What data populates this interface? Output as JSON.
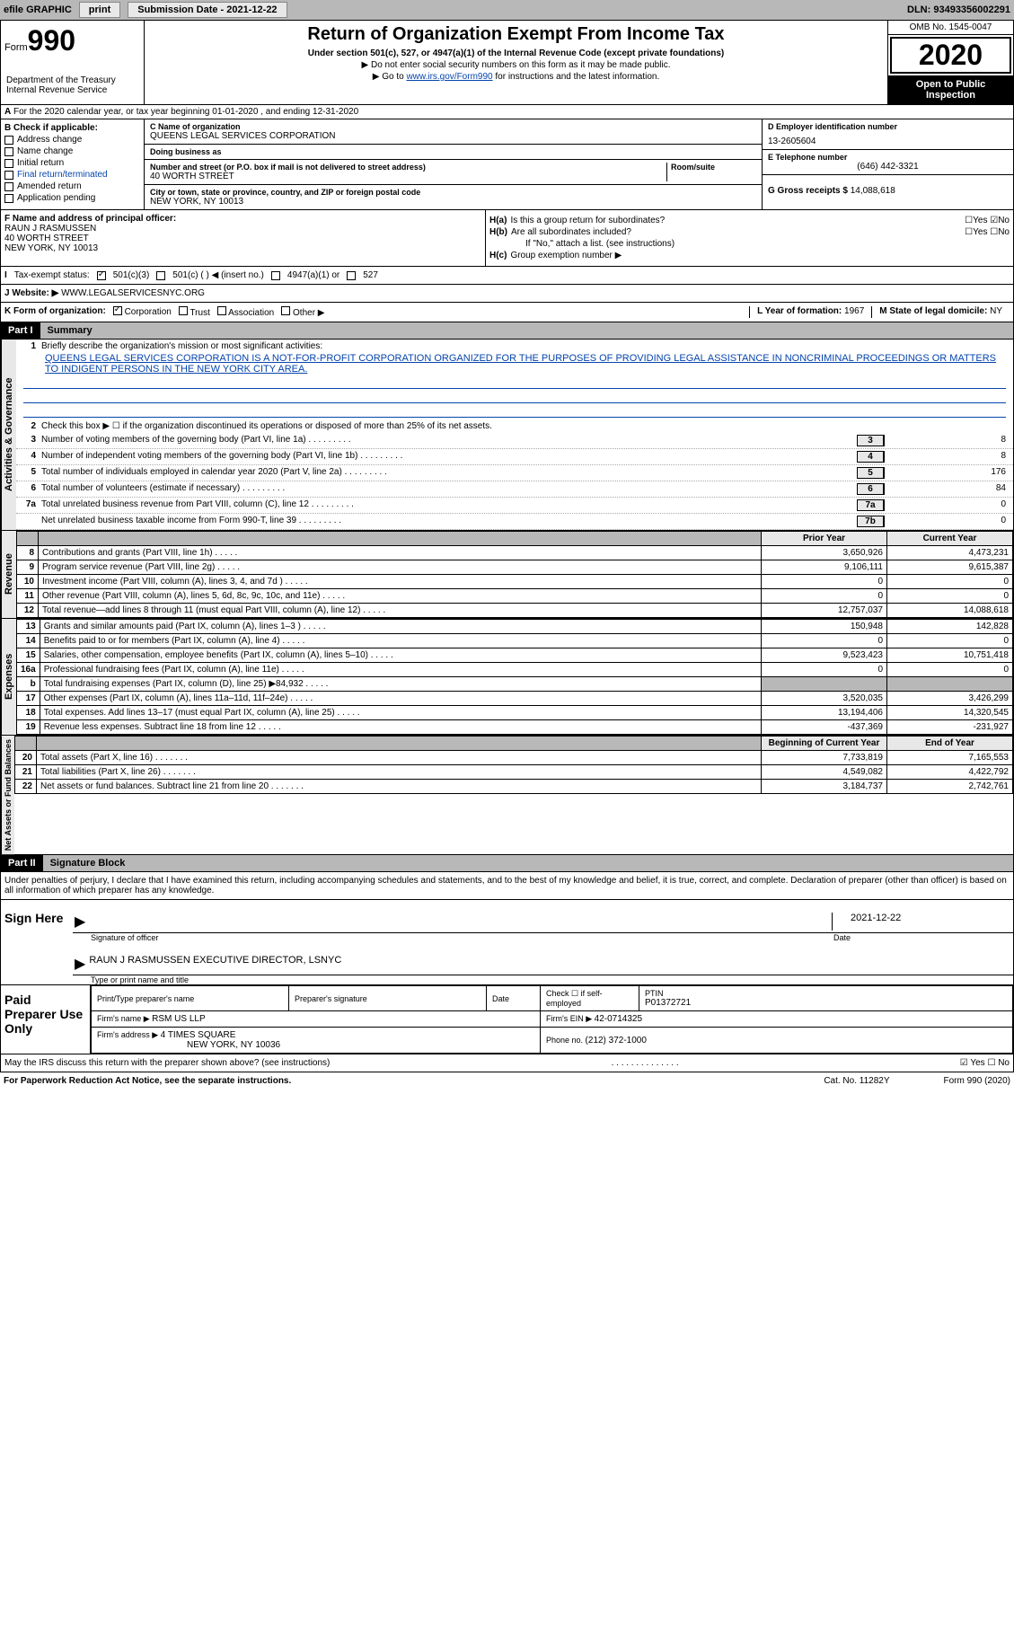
{
  "topbar": {
    "efile": "efile GRAPHIC",
    "print": "print",
    "sub_date_label": "Submission Date - ",
    "sub_date": "2021-12-22",
    "dln_label": "DLN: ",
    "dln": "93493356002291"
  },
  "header": {
    "form_word": "Form",
    "form_num": "990",
    "dept": "Department of the Treasury\nInternal Revenue Service",
    "title": "Return of Organization Exempt From Income Tax",
    "subtitle": "Under section 501(c), 527, or 4947(a)(1) of the Internal Revenue Code (except private foundations)",
    "note1": "▶ Do not enter social security numbers on this form as it may be made public.",
    "note2_pre": "▶ Go to ",
    "note2_link": "www.irs.gov/Form990",
    "note2_post": " for instructions and the latest information.",
    "omb": "OMB No. 1545-0047",
    "year": "2020",
    "open": "Open to Public Inspection"
  },
  "row_a": "For the 2020 calendar year, or tax year beginning 01-01-2020   , and ending 12-31-2020",
  "b": {
    "label": "B Check if applicable:",
    "items": [
      "Address change",
      "Name change",
      "Initial return",
      "Final return/terminated",
      "Amended return",
      "Application pending"
    ],
    "amended_color": "#0645ad"
  },
  "c": {
    "name_label": "C Name of organization",
    "name": "QUEENS LEGAL SERVICES CORPORATION",
    "dba_label": "Doing business as",
    "dba": "",
    "street_label": "Number and street (or P.O. box if mail is not delivered to street address)",
    "room_label": "Room/suite",
    "street": "40 WORTH STREET",
    "city_label": "City or town, state or province, country, and ZIP or foreign postal code",
    "city": "NEW YORK, NY  10013"
  },
  "d": {
    "ein_label": "D Employer identification number",
    "ein": "13-2605604",
    "tel_label": "E Telephone number",
    "tel": "(646) 442-3321",
    "gross_label": "G Gross receipts $ ",
    "gross": "14,088,618"
  },
  "f": {
    "label": "F  Name and address of principal officer:",
    "name": "RAUN J RASMUSSEN",
    "street": "40 WORTH STREET",
    "city": "NEW YORK, NY  10013"
  },
  "h": {
    "ha_label": "H(a)",
    "ha_text": "Is this a group return for subordinates?",
    "hb_label": "H(b)",
    "hb_text": "Are all subordinates included?",
    "hb_note": "If \"No,\" attach a list. (see instructions)",
    "hc_label": "H(c)",
    "hc_text": "Group exemption number ▶",
    "yes": "Yes",
    "no": "No"
  },
  "i": {
    "label": "I",
    "text": "Tax-exempt status:",
    "opts": [
      "501(c)(3)",
      "501(c) (  ) ◀ (insert no.)",
      "4947(a)(1) or",
      "527"
    ]
  },
  "j": {
    "label": "J",
    "text": "Website: ▶",
    "url": "WWW.LEGALSERVICESNYC.ORG"
  },
  "k": {
    "label": "K Form of organization:",
    "opts": [
      "Corporation",
      "Trust",
      "Association",
      "Other ▶"
    ],
    "l_label": "L Year of formation: ",
    "l_val": "1967",
    "m_label": "M State of legal domicile: ",
    "m_val": "NY"
  },
  "part1": {
    "header": "Part I",
    "title": "Summary",
    "line1_label": "1",
    "line1_text": "Briefly describe the organization's mission or most significant activities:",
    "mission": "QUEENS LEGAL SERVICES CORPORATION IS A NOT-FOR-PROFIT CORPORATION ORGANIZED FOR THE PURPOSES OF PROVIDING LEGAL ASSISTANCE IN NONCRIMINAL PROCEEDINGS OR MATTERS TO INDIGENT PERSONS IN THE NEW YORK CITY AREA.",
    "gov_label": "Activities & Governance",
    "rev_label": "Revenue",
    "exp_label": "Expenses",
    "net_label": "Net Assets or Fund Balances",
    "line2": "Check this box ▶ ☐  if the organization discontinued its operations or disposed of more than 25% of its net assets.",
    "lines_gov": [
      {
        "n": "3",
        "t": "Number of voting members of the governing body (Part VI, line 1a)",
        "b": "3",
        "v": "8"
      },
      {
        "n": "4",
        "t": "Number of independent voting members of the governing body (Part VI, line 1b)",
        "b": "4",
        "v": "8"
      },
      {
        "n": "5",
        "t": "Total number of individuals employed in calendar year 2020 (Part V, line 2a)",
        "b": "5",
        "v": "176"
      },
      {
        "n": "6",
        "t": "Total number of volunteers (estimate if necessary)",
        "b": "6",
        "v": "84"
      },
      {
        "n": "7a",
        "t": "Total unrelated business revenue from Part VIII, column (C), line 12",
        "b": "7a",
        "v": "0"
      },
      {
        "n": "",
        "t": "Net unrelated business taxable income from Form 990-T, line 39",
        "b": "7b",
        "v": "0"
      }
    ],
    "col_prior": "Prior Year",
    "col_current": "Current Year",
    "col_begin": "Beginning of Current Year",
    "col_end": "End of Year",
    "rev_rows": [
      {
        "n": "8",
        "t": "Contributions and grants (Part VIII, line 1h)",
        "p": "3,650,926",
        "c": "4,473,231"
      },
      {
        "n": "9",
        "t": "Program service revenue (Part VIII, line 2g)",
        "p": "9,106,111",
        "c": "9,615,387"
      },
      {
        "n": "10",
        "t": "Investment income (Part VIII, column (A), lines 3, 4, and 7d )",
        "p": "0",
        "c": "0"
      },
      {
        "n": "11",
        "t": "Other revenue (Part VIII, column (A), lines 5, 6d, 8c, 9c, 10c, and 11e)",
        "p": "0",
        "c": "0"
      },
      {
        "n": "12",
        "t": "Total revenue—add lines 8 through 11 (must equal Part VIII, column (A), line 12)",
        "p": "12,757,037",
        "c": "14,088,618"
      }
    ],
    "exp_rows": [
      {
        "n": "13",
        "t": "Grants and similar amounts paid (Part IX, column (A), lines 1–3 )",
        "p": "150,948",
        "c": "142,828"
      },
      {
        "n": "14",
        "t": "Benefits paid to or for members (Part IX, column (A), line 4)",
        "p": "0",
        "c": "0"
      },
      {
        "n": "15",
        "t": "Salaries, other compensation, employee benefits (Part IX, column (A), lines 5–10)",
        "p": "9,523,423",
        "c": "10,751,418"
      },
      {
        "n": "16a",
        "t": "Professional fundraising fees (Part IX, column (A), line 11e)",
        "p": "0",
        "c": "0"
      },
      {
        "n": "b",
        "t": "Total fundraising expenses (Part IX, column (D), line 25) ▶84,932",
        "p": "",
        "c": "",
        "shaded": true
      },
      {
        "n": "17",
        "t": "Other expenses (Part IX, column (A), lines 11a–11d, 11f–24e)",
        "p": "3,520,035",
        "c": "3,426,299"
      },
      {
        "n": "18",
        "t": "Total expenses. Add lines 13–17 (must equal Part IX, column (A), line 25)",
        "p": "13,194,406",
        "c": "14,320,545"
      },
      {
        "n": "19",
        "t": "Revenue less expenses. Subtract line 18 from line 12",
        "p": "-437,369",
        "c": "-231,927"
      }
    ],
    "net_rows": [
      {
        "n": "20",
        "t": "Total assets (Part X, line 16)",
        "p": "7,733,819",
        "c": "7,165,553"
      },
      {
        "n": "21",
        "t": "Total liabilities (Part X, line 26)",
        "p": "4,549,082",
        "c": "4,422,792"
      },
      {
        "n": "22",
        "t": "Net assets or fund balances. Subtract line 21 from line 20",
        "p": "3,184,737",
        "c": "2,742,761"
      }
    ]
  },
  "part2": {
    "header": "Part II",
    "title": "Signature Block",
    "penalty": "Under penalties of perjury, I declare that I have examined this return, including accompanying schedules and statements, and to the best of my knowledge and belief, it is true, correct, and complete. Declaration of preparer (other than officer) is based on all information of which preparer has any knowledge.",
    "sign_here": "Sign Here",
    "sig_officer": "Signature of officer",
    "sig_date_lbl": "Date",
    "sig_date": "2021-12-22",
    "officer": "RAUN J RASMUSSEN  EXECUTIVE DIRECTOR, LSNYC",
    "type_name": "Type or print name and title",
    "paid_prep": "Paid Preparer Use Only",
    "print_name_lbl": "Print/Type preparer's name",
    "prep_sig_lbl": "Preparer's signature",
    "date_lbl": "Date",
    "check_self": "Check ☐ if self-employed",
    "ptin_lbl": "PTIN",
    "ptin": "P01372721",
    "firm_name_lbl": "Firm's name    ▶ ",
    "firm_name": "RSM US LLP",
    "firm_ein_lbl": "Firm's EIN ▶ ",
    "firm_ein": "42-0714325",
    "firm_addr_lbl": "Firm's address ▶ ",
    "firm_addr": "4 TIMES SQUARE",
    "firm_city": "NEW YORK, NY  10036",
    "phone_lbl": "Phone no. ",
    "phone": "(212) 372-1000",
    "discuss": "May the IRS discuss this return with the preparer shown above? (see instructions)",
    "yes": "Yes",
    "no": "No"
  },
  "footer": {
    "notice": "For Paperwork Reduction Act Notice, see the separate instructions.",
    "cat": "Cat. No. 11282Y",
    "form": "Form 990 (2020)"
  }
}
